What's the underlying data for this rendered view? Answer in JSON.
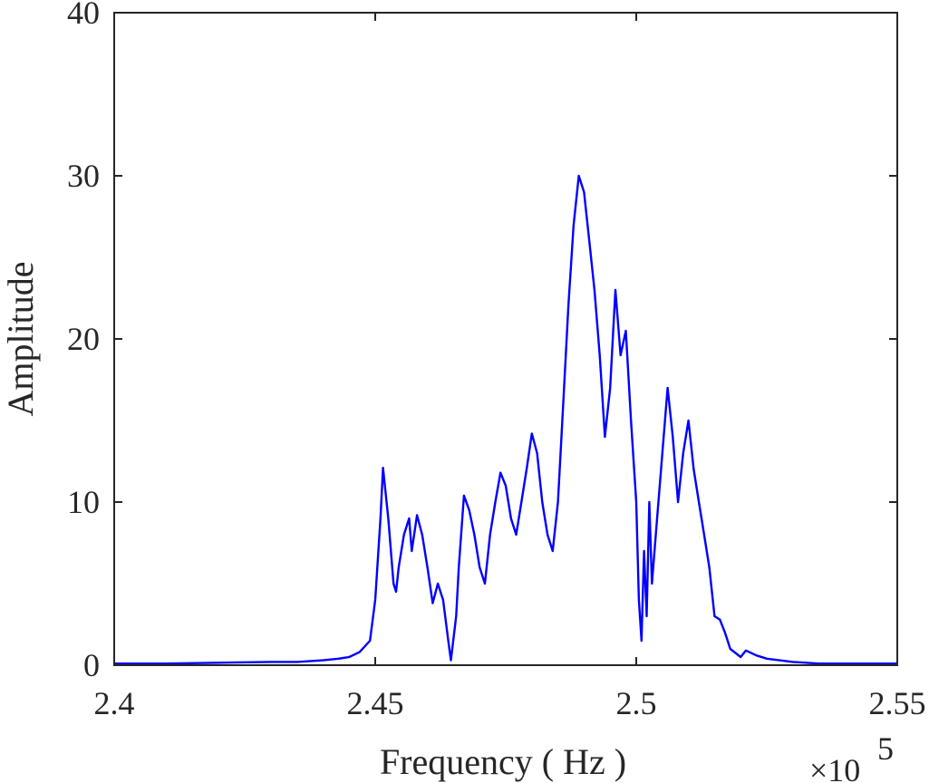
{
  "chart_data": {
    "type": "line",
    "xlabel": "Frequency ( Hz )",
    "ylabel": "Amplitude",
    "x_exponent": {
      "base": "×10",
      "power": "5"
    },
    "xlim": [
      240000,
      255000
    ],
    "ylim": [
      0,
      40
    ],
    "x_ticks": [
      240000,
      245000,
      250000,
      255000
    ],
    "x_tick_labels": [
      "2.4",
      "2.45",
      "2.5",
      "2.55"
    ],
    "y_ticks": [
      0,
      10,
      20,
      30,
      40
    ],
    "y_tick_labels": [
      "0",
      "10",
      "20",
      "30",
      "40"
    ],
    "grid": false,
    "series": [
      {
        "color": "#0000ff",
        "points": [
          [
            240000,
            0.1
          ],
          [
            241000,
            0.1
          ],
          [
            242000,
            0.15
          ],
          [
            243000,
            0.2
          ],
          [
            243500,
            0.2
          ],
          [
            244000,
            0.3
          ],
          [
            244300,
            0.4
          ],
          [
            244500,
            0.5
          ],
          [
            244700,
            0.8
          ],
          [
            244900,
            1.5
          ],
          [
            245000,
            4
          ],
          [
            245100,
            9
          ],
          [
            245150,
            12.1
          ],
          [
            245250,
            9
          ],
          [
            245350,
            5
          ],
          [
            245400,
            4.5
          ],
          [
            245450,
            6
          ],
          [
            245550,
            8
          ],
          [
            245650,
            9
          ],
          [
            245700,
            7
          ],
          [
            245800,
            9.2
          ],
          [
            245900,
            8
          ],
          [
            246000,
            6
          ],
          [
            246100,
            3.8
          ],
          [
            246200,
            5
          ],
          [
            246300,
            4
          ],
          [
            246400,
            1.5
          ],
          [
            246450,
            0.3
          ],
          [
            246550,
            3
          ],
          [
            246600,
            6
          ],
          [
            246700,
            10.4
          ],
          [
            246800,
            9.5
          ],
          [
            246900,
            8
          ],
          [
            247000,
            6
          ],
          [
            247100,
            5
          ],
          [
            247200,
            8
          ],
          [
            247300,
            10
          ],
          [
            247400,
            11.8
          ],
          [
            247500,
            11
          ],
          [
            247600,
            9
          ],
          [
            247700,
            8
          ],
          [
            247800,
            10
          ],
          [
            247900,
            12
          ],
          [
            248000,
            14.2
          ],
          [
            248100,
            13
          ],
          [
            248200,
            10
          ],
          [
            248300,
            8
          ],
          [
            248400,
            7
          ],
          [
            248500,
            10
          ],
          [
            248600,
            16
          ],
          [
            248700,
            22
          ],
          [
            248800,
            27
          ],
          [
            248900,
            30
          ],
          [
            249000,
            29
          ],
          [
            249100,
            26
          ],
          [
            249200,
            23
          ],
          [
            249300,
            19
          ],
          [
            249400,
            14
          ],
          [
            249500,
            17
          ],
          [
            249600,
            23
          ],
          [
            249700,
            19
          ],
          [
            249800,
            20.5
          ],
          [
            249900,
            15
          ],
          [
            250000,
            10
          ],
          [
            250050,
            4
          ],
          [
            250100,
            1.5
          ],
          [
            250150,
            7
          ],
          [
            250200,
            3
          ],
          [
            250250,
            10
          ],
          [
            250300,
            5
          ],
          [
            250400,
            9
          ],
          [
            250500,
            13
          ],
          [
            250600,
            17
          ],
          [
            250700,
            14
          ],
          [
            250800,
            10
          ],
          [
            250900,
            13
          ],
          [
            251000,
            15
          ],
          [
            251100,
            12
          ],
          [
            251200,
            10
          ],
          [
            251300,
            8
          ],
          [
            251400,
            6
          ],
          [
            251500,
            3
          ],
          [
            251600,
            2.8
          ],
          [
            251700,
            2
          ],
          [
            251800,
            1
          ],
          [
            252000,
            0.5
          ],
          [
            252100,
            0.9
          ],
          [
            252300,
            0.6
          ],
          [
            252500,
            0.4
          ],
          [
            253000,
            0.2
          ],
          [
            253500,
            0.1
          ],
          [
            254000,
            0.1
          ],
          [
            255000,
            0.1
          ]
        ]
      }
    ]
  }
}
